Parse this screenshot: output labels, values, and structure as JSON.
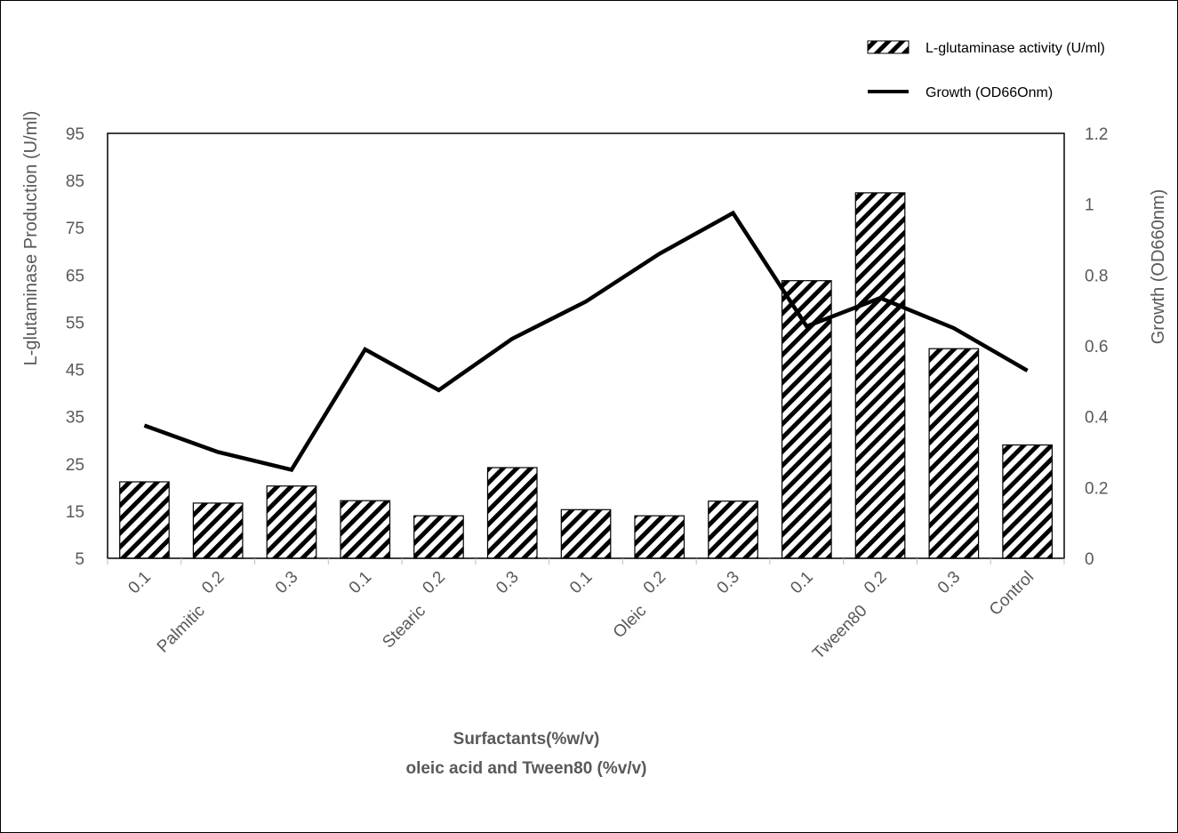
{
  "chart_data": {
    "type": "bar",
    "categories": [
      "0.1",
      "0.2",
      "0.3",
      "0.1",
      "0.2",
      "0.3",
      "0.1",
      "0.2",
      "0.3",
      "0.1",
      "0.2",
      "0.3",
      "Control"
    ],
    "group_labels": [
      "Palmitic",
      "Stearic",
      "Oleic",
      "Tween80"
    ],
    "series": [
      {
        "name": "L-glutaminase activity (U/ml)",
        "type": "bar",
        "axis": "left",
        "values": [
          21.2,
          16.7,
          20.3,
          17.2,
          14.0,
          24.2,
          15.3,
          14.0,
          17.1,
          63.8,
          82.4,
          49.4,
          29.0
        ]
      },
      {
        "name": "Growth (OD66Onm)",
        "type": "line",
        "axis": "right",
        "values": [
          0.375,
          0.3,
          0.25,
          0.59,
          0.475,
          0.62,
          0.725,
          0.86,
          0.975,
          0.655,
          0.735,
          0.65,
          0.53
        ]
      }
    ],
    "ylabel": "L-glutaminase Production (U/ml)",
    "y2label": "Growth (OD660nm)",
    "xlabel_lines": [
      "Surfactants(%w/v)",
      "oleic acid and Tween80 (%v/v)"
    ],
    "ylim": [
      5,
      95
    ],
    "yticks": [
      "95",
      "85",
      "75",
      "65",
      "55",
      "45",
      "35",
      "25",
      "15",
      "5"
    ],
    "y2lim": [
      0,
      1.2
    ],
    "y2ticks": [
      "1.2",
      "1",
      "0.8",
      "0.6",
      "0.4",
      "0.2",
      "0"
    ],
    "grid": false,
    "legend_position": "top-right",
    "colors": {
      "bar_stroke": "#000000",
      "bar_hatch": "#000000",
      "line": "#000000",
      "text": "#595959"
    }
  }
}
